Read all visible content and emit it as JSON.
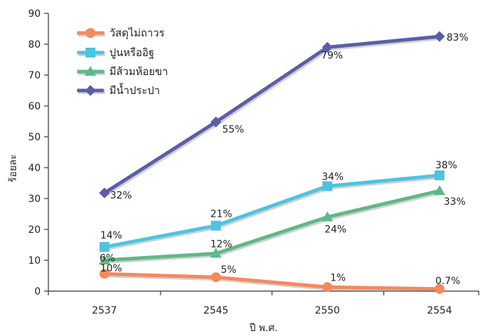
{
  "chart_data": {
    "type": "line",
    "categories": [
      "2537",
      "2545",
      "2550",
      "2554"
    ],
    "xlabel": "ปี พ.ศ.",
    "ylabel": "ร้อยละ",
    "ylim": [
      0,
      90
    ],
    "yticks": [
      0,
      10,
      20,
      30,
      40,
      50,
      60,
      70,
      80,
      90
    ],
    "grid": false,
    "legend_position": "top-left",
    "series": [
      {
        "name": "วัสดุไม่ถาวร",
        "values": [
          6,
          5,
          1,
          0.7
        ],
        "plot_values": [
          5.6,
          4.5,
          1.3,
          0.7
        ],
        "labels": [
          "6%",
          "5%",
          "1%",
          "0.7%"
        ],
        "color": "#F4895E",
        "marker": "circle"
      },
      {
        "name": "ปูนหรืออิฐ",
        "values": [
          14,
          21,
          34,
          38
        ],
        "plot_values": [
          14.3,
          21.2,
          34.0,
          37.5
        ],
        "labels": [
          "14%",
          "21%",
          "34%",
          "38%"
        ],
        "color": "#4EC3E0",
        "marker": "square"
      },
      {
        "name": "มีส้วมห้อยขา",
        "values": [
          10,
          12,
          24,
          33
        ],
        "plot_values": [
          10.0,
          12.2,
          24.0,
          32.5
        ],
        "labels": [
          "10%",
          "12%",
          "24%",
          "33%"
        ],
        "color": "#5FB888",
        "marker": "triangle"
      },
      {
        "name": "มีน้ำประปา",
        "values": [
          32,
          55,
          79,
          83
        ],
        "plot_values": [
          31.8,
          54.8,
          79.0,
          82.5
        ],
        "labels": [
          "32%",
          "55%",
          "79%",
          "83%"
        ],
        "color": "#5B5EA6",
        "marker": "diamond"
      }
    ]
  }
}
